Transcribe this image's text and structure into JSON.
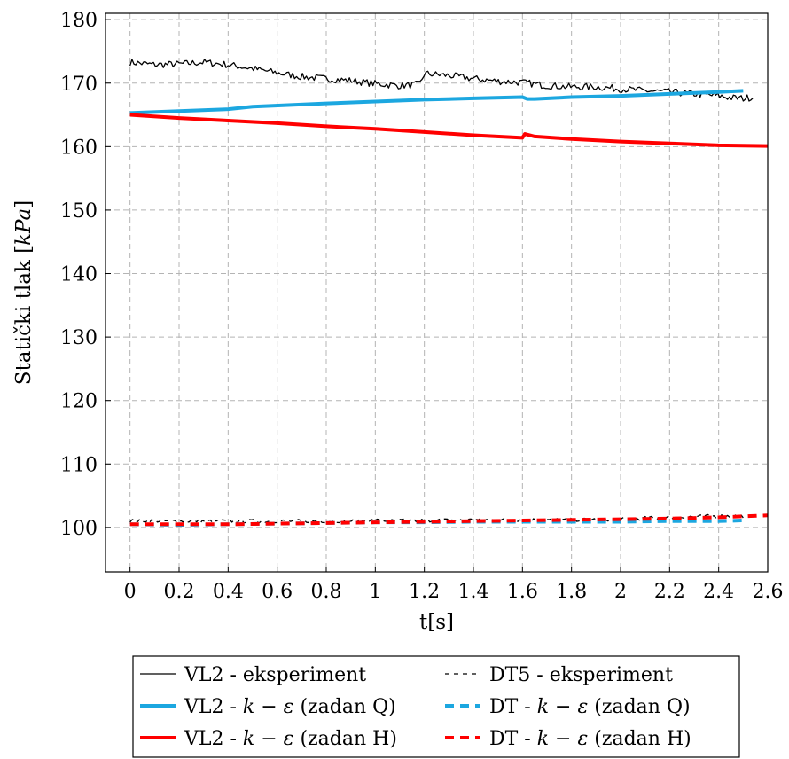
{
  "chart_data": {
    "type": "line",
    "title": "",
    "xlabel": "t[s]",
    "ylabel": "Statički tlak [kPa]",
    "ylabel_plain": "Statički tlak [",
    "ylabel_unit": "kPa",
    "ylabel_close": "]",
    "xlim": [
      -0.1,
      2.6
    ],
    "ylim": [
      93,
      181
    ],
    "x_ticks": [
      0,
      0.2,
      0.4,
      0.6,
      0.8,
      1,
      1.2,
      1.4,
      1.6,
      1.8,
      2,
      2.2,
      2.4,
      2.6
    ],
    "x_tick_labels": [
      "0",
      "0.2",
      "0.4",
      "0.6",
      "0.8",
      "1",
      "1.2",
      "1.4",
      "1.6",
      "1.8",
      "2",
      "2.2",
      "2.4",
      "2.6"
    ],
    "y_ticks": [
      100,
      110,
      120,
      130,
      140,
      150,
      160,
      170,
      180
    ],
    "y_tick_labels": [
      "100",
      "110",
      "120",
      "130",
      "140",
      "150",
      "160",
      "170",
      "180"
    ],
    "grid": true,
    "legend_position": "bottom-outside",
    "series": [
      {
        "name": "VL2 - eksperiment",
        "legend_main": "VL2 - ",
        "legend_tail": "",
        "color": "#000000",
        "width": 1.3,
        "dash": "none",
        "noisy": true,
        "x": [
          0,
          0.1,
          0.2,
          0.3,
          0.4,
          0.5,
          0.6,
          0.7,
          0.8,
          0.9,
          1.0,
          1.1,
          1.15,
          1.18,
          1.2,
          1.3,
          1.4,
          1.5,
          1.6,
          1.7,
          1.8,
          1.9,
          2.0,
          2.1,
          2.2,
          2.3,
          2.4,
          2.45,
          2.5,
          2.54
        ],
        "y": [
          173.3,
          172.9,
          173.0,
          173.3,
          172.9,
          172.3,
          171.6,
          171.0,
          170.7,
          170.4,
          169.9,
          169.6,
          169.7,
          169.8,
          171.5,
          171.2,
          170.7,
          170.3,
          170.1,
          169.6,
          169.4,
          169.4,
          169.1,
          168.8,
          168.6,
          168.3,
          168.0,
          167.7,
          167.6,
          167.8
        ]
      },
      {
        "name": "DT5 - eksperiment",
        "legend_main": "DT5 - ",
        "legend_tail": "",
        "color": "#000000",
        "width": 1.3,
        "dash": "5,5",
        "noisy": true,
        "x": [
          0,
          0.2,
          0.4,
          0.6,
          0.8,
          1.0,
          1.2,
          1.4,
          1.6,
          1.8,
          2.0,
          2.2,
          2.3,
          2.4,
          2.5
        ],
        "y": [
          101.1,
          101.0,
          101.0,
          101.0,
          101.0,
          101.1,
          101.1,
          101.2,
          101.2,
          101.2,
          101.3,
          101.6,
          101.7,
          101.8,
          101.8
        ]
      },
      {
        "name": "VL2 - k − ε (zadan Q)",
        "legend_main": "VL2 - ",
        "legend_tail": " (zadan Q)",
        "color": "#1ca7e0",
        "width": 4,
        "dash": "none",
        "noisy": false,
        "x": [
          0,
          0.2,
          0.4,
          0.5,
          0.8,
          1.0,
          1.2,
          1.4,
          1.6,
          1.62,
          1.65,
          1.8,
          2.0,
          2.2,
          2.4,
          2.5
        ],
        "y": [
          165.3,
          165.6,
          165.9,
          166.3,
          166.8,
          167.1,
          167.4,
          167.6,
          167.8,
          167.5,
          167.5,
          167.8,
          168.0,
          168.3,
          168.6,
          168.8
        ]
      },
      {
        "name": "DT - k − ε (zadan Q)",
        "legend_main": "DT - ",
        "legend_tail": " (zadan Q)",
        "color": "#1ca7e0",
        "width": 4,
        "dash": "10,7",
        "noisy": false,
        "x": [
          0,
          0.2,
          0.4,
          0.6,
          0.8,
          1.0,
          1.2,
          1.4,
          1.6,
          1.8,
          2.0,
          2.2,
          2.4,
          2.5
        ],
        "y": [
          100.5,
          100.4,
          100.5,
          100.6,
          100.7,
          100.8,
          100.8,
          100.9,
          100.9,
          100.9,
          100.9,
          101.0,
          101.0,
          101.1
        ]
      },
      {
        "name": "VL2 - k − ε (zadan H)",
        "legend_main": "VL2 - ",
        "legend_tail": " (zadan H)",
        "color": "#ff0000",
        "width": 4,
        "dash": "none",
        "noisy": false,
        "x": [
          0,
          0.2,
          0.4,
          0.6,
          0.8,
          1.0,
          1.2,
          1.4,
          1.6,
          1.61,
          1.65,
          1.8,
          2.0,
          2.2,
          2.4,
          2.6
        ],
        "y": [
          165.0,
          164.5,
          164.1,
          163.7,
          163.2,
          162.8,
          162.3,
          161.8,
          161.4,
          162.0,
          161.6,
          161.2,
          160.8,
          160.5,
          160.2,
          160.1
        ]
      },
      {
        "name": "DT - k − ε (zadan H)",
        "legend_main": "DT - ",
        "legend_tail": " (zadan H)",
        "color": "#ff0000",
        "width": 4,
        "dash": "10,7",
        "noisy": false,
        "x": [
          0,
          0.2,
          0.4,
          0.6,
          0.8,
          1.0,
          1.2,
          1.4,
          1.6,
          1.8,
          2.0,
          2.2,
          2.4,
          2.6
        ],
        "y": [
          100.5,
          100.5,
          100.5,
          100.6,
          100.7,
          100.8,
          100.9,
          101.0,
          101.1,
          101.2,
          101.3,
          101.4,
          101.6,
          101.9
        ]
      }
    ]
  }
}
